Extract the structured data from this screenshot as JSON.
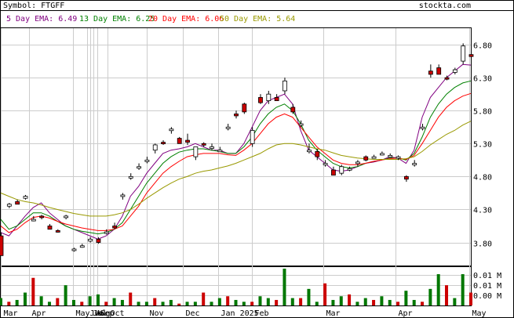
{
  "header": {
    "symbol_text": "Symbol: FTGFF",
    "brand": "stockta.com"
  },
  "legend": [
    {
      "label": "5 Day EMA: 6.49",
      "color": "#800080"
    },
    {
      "label": "13 Day EMA: 6.25",
      "color": "#008000"
    },
    {
      "label": "20 Day EMA: 6.06",
      "color": "#ff0000"
    },
    {
      "label": "50 Day EMA: 5.64",
      "color": "#999900"
    }
  ],
  "colors": {
    "up": "#ffffff",
    "down": "#cc0000",
    "vol_up": "#007700",
    "vol_down": "#cc0000",
    "grid": "#cccccc"
  },
  "chart_data": {
    "type": "candlestick",
    "title": "Symbol: FTGFF",
    "y_ticks": [
      6.8,
      6.3,
      5.8,
      5.3,
      4.8,
      4.3,
      3.8
    ],
    "y_tick_labels": [
      "6.80",
      "6.30",
      "5.80",
      "5.30",
      "4.80",
      "4.30",
      "3.80"
    ],
    "ylim": [
      3.45,
      7.05
    ],
    "x_labels": [
      "Mar",
      "Apr",
      "May",
      "Jun",
      "Jul",
      "Aug",
      "Sep",
      "Oct",
      "Nov",
      "Dec",
      "Jan 2025",
      "Feb",
      "Mar",
      "Apr",
      "May"
    ],
    "x_label_index": [
      0,
      16,
      41,
      49,
      51,
      53,
      55,
      61,
      83,
      104,
      124,
      143,
      184,
      225,
      267
    ],
    "volume_ticks": [
      "0.01 M",
      "0.01 M",
      "0.00 M"
    ],
    "series": [
      {
        "name": "5 Day EMA",
        "values": [
          3.95,
          3.9,
          4.05,
          4.2,
          4.33,
          4.4,
          4.25,
          4.15,
          4.05,
          4.0,
          3.95,
          3.9,
          3.85,
          3.9,
          4.0,
          4.2,
          4.5,
          4.65,
          4.85,
          5.0,
          5.15,
          5.2,
          5.22,
          5.25,
          5.3,
          5.25,
          5.2,
          5.2,
          5.15,
          5.15,
          5.3,
          5.55,
          5.8,
          5.95,
          6.0,
          6.05,
          5.9,
          5.5,
          5.2,
          5.1,
          5.0,
          4.9,
          4.88,
          4.9,
          4.95,
          5.0,
          5.02,
          5.05,
          5.1,
          5.08,
          5.0,
          5.2,
          5.7,
          6.0,
          6.15,
          6.3,
          6.4,
          6.5,
          6.49
        ]
      },
      {
        "name": "13 Day EMA",
        "values": [
          4.15,
          4.0,
          4.05,
          4.15,
          4.25,
          4.25,
          4.2,
          4.12,
          4.05,
          4.0,
          3.97,
          3.95,
          3.93,
          3.95,
          4.0,
          4.1,
          4.3,
          4.5,
          4.7,
          4.85,
          5.0,
          5.1,
          5.17,
          5.2,
          5.22,
          5.22,
          5.2,
          5.18,
          5.15,
          5.15,
          5.25,
          5.4,
          5.6,
          5.75,
          5.85,
          5.9,
          5.8,
          5.6,
          5.35,
          5.2,
          5.1,
          5.0,
          4.95,
          4.93,
          4.95,
          5.0,
          5.03,
          5.05,
          5.08,
          5.08,
          5.05,
          5.15,
          5.4,
          5.7,
          5.9,
          6.05,
          6.15,
          6.22,
          6.25
        ]
      },
      {
        "name": "20 Day EMA",
        "values": [
          4.05,
          3.95,
          4.0,
          4.1,
          4.18,
          4.2,
          4.17,
          4.12,
          4.08,
          4.05,
          4.02,
          4.0,
          3.98,
          3.98,
          4.0,
          4.05,
          4.2,
          4.35,
          4.55,
          4.7,
          4.85,
          4.95,
          5.03,
          5.1,
          5.13,
          5.15,
          5.15,
          5.15,
          5.13,
          5.12,
          5.2,
          5.3,
          5.45,
          5.6,
          5.7,
          5.75,
          5.7,
          5.55,
          5.4,
          5.25,
          5.15,
          5.05,
          5.0,
          4.98,
          4.98,
          5.0,
          5.03,
          5.05,
          5.07,
          5.08,
          5.06,
          5.12,
          5.3,
          5.5,
          5.7,
          5.85,
          5.95,
          6.02,
          6.06
        ]
      },
      {
        "name": "50 Day EMA",
        "values": [
          4.55,
          4.5,
          4.45,
          4.42,
          4.4,
          4.37,
          4.33,
          4.3,
          4.27,
          4.24,
          4.22,
          4.2,
          4.2,
          4.2,
          4.22,
          4.25,
          4.3,
          4.38,
          4.47,
          4.55,
          4.63,
          4.7,
          4.76,
          4.8,
          4.85,
          4.88,
          4.9,
          4.93,
          4.96,
          5.0,
          5.05,
          5.1,
          5.15,
          5.22,
          5.28,
          5.3,
          5.3,
          5.28,
          5.25,
          5.22,
          5.2,
          5.16,
          5.12,
          5.1,
          5.08,
          5.07,
          5.06,
          5.06,
          5.06,
          5.06,
          5.07,
          5.1,
          5.18,
          5.28,
          5.36,
          5.44,
          5.5,
          5.58,
          5.64
        ]
      }
    ],
    "candles": [
      {
        "o": 3.9,
        "h": 3.95,
        "l": 3.6,
        "c": 3.6
      },
      {
        "o": 4.35,
        "h": 4.4,
        "l": 4.32,
        "c": 4.38
      },
      {
        "o": 4.42,
        "h": 4.45,
        "l": 4.38,
        "c": 4.38
      },
      {
        "o": 4.47,
        "h": 4.52,
        "l": 4.45,
        "c": 4.5
      },
      {
        "o": 4.15,
        "h": 4.2,
        "l": 4.12,
        "c": 4.15
      },
      {
        "o": 4.2,
        "h": 4.22,
        "l": 4.15,
        "c": 4.18
      },
      {
        "o": 4.05,
        "h": 4.08,
        "l": 4.0,
        "c": 4.0
      },
      {
        "o": 3.98,
        "h": 4.0,
        "l": 3.95,
        "c": 3.96
      },
      {
        "o": 4.2,
        "h": 4.22,
        "l": 4.15,
        "c": 4.2
      },
      {
        "o": 3.7,
        "h": 3.72,
        "l": 3.66,
        "c": 3.7
      },
      {
        "o": 3.75,
        "h": 3.78,
        "l": 3.72,
        "c": 3.75
      },
      {
        "o": 3.82,
        "h": 3.88,
        "l": 3.8,
        "c": 3.85
      },
      {
        "o": 3.85,
        "h": 3.88,
        "l": 3.78,
        "c": 3.8
      },
      {
        "o": 3.95,
        "h": 4.0,
        "l": 3.92,
        "c": 3.96
      },
      {
        "o": 4.05,
        "h": 4.1,
        "l": 4.0,
        "c": 4.02
      },
      {
        "o": 4.5,
        "h": 4.55,
        "l": 4.45,
        "c": 4.52
      },
      {
        "o": 4.8,
        "h": 4.85,
        "l": 4.75,
        "c": 4.8
      },
      {
        "o": 4.95,
        "h": 5.0,
        "l": 4.9,
        "c": 4.95
      },
      {
        "o": 5.05,
        "h": 5.1,
        "l": 5.0,
        "c": 5.05
      },
      {
        "o": 5.2,
        "h": 5.3,
        "l": 5.15,
        "c": 5.28
      },
      {
        "o": 5.32,
        "h": 5.35,
        "l": 5.28,
        "c": 5.3
      },
      {
        "o": 5.5,
        "h": 5.55,
        "l": 5.45,
        "c": 5.52
      },
      {
        "o": 5.38,
        "h": 5.4,
        "l": 5.3,
        "c": 5.3
      },
      {
        "o": 5.35,
        "h": 5.45,
        "l": 5.28,
        "c": 5.32
      },
      {
        "o": 5.1,
        "h": 5.25,
        "l": 5.05,
        "c": 5.25
      },
      {
        "o": 5.3,
        "h": 5.32,
        "l": 5.25,
        "c": 5.28
      },
      {
        "o": 5.25,
        "h": 5.3,
        "l": 5.2,
        "c": 5.25
      },
      {
        "o": 5.2,
        "h": 5.25,
        "l": 5.18,
        "c": 5.2
      },
      {
        "o": 5.55,
        "h": 5.6,
        "l": 5.5,
        "c": 5.55
      },
      {
        "o": 5.75,
        "h": 5.8,
        "l": 5.68,
        "c": 5.72
      },
      {
        "o": 5.9,
        "h": 5.92,
        "l": 5.75,
        "c": 5.78
      },
      {
        "o": 5.3,
        "h": 5.55,
        "l": 5.25,
        "c": 5.5
      },
      {
        "o": 6.0,
        "h": 6.05,
        "l": 5.9,
        "c": 5.92
      },
      {
        "o": 5.95,
        "h": 6.1,
        "l": 5.9,
        "c": 6.05
      },
      {
        "o": 6.0,
        "h": 6.05,
        "l": 5.95,
        "c": 5.95
      },
      {
        "o": 6.1,
        "h": 6.3,
        "l": 6.05,
        "c": 6.25
      },
      {
        "o": 5.85,
        "h": 5.9,
        "l": 5.75,
        "c": 5.78
      },
      {
        "o": 5.6,
        "h": 5.65,
        "l": 5.55,
        "c": 5.6
      },
      {
        "o": 5.2,
        "h": 5.3,
        "l": 5.15,
        "c": 5.2
      },
      {
        "o": 5.18,
        "h": 5.22,
        "l": 5.05,
        "c": 5.1
      },
      {
        "o": 5.0,
        "h": 5.05,
        "l": 4.95,
        "c": 5.0
      },
      {
        "o": 4.9,
        "h": 4.95,
        "l": 4.82,
        "c": 4.82
      },
      {
        "o": 4.85,
        "h": 4.98,
        "l": 4.82,
        "c": 4.95
      },
      {
        "o": 4.92,
        "h": 4.95,
        "l": 4.88,
        "c": 4.92
      },
      {
        "o": 5.0,
        "h": 5.05,
        "l": 4.95,
        "c": 5.02
      },
      {
        "o": 5.1,
        "h": 5.12,
        "l": 5.03,
        "c": 5.05
      },
      {
        "o": 5.1,
        "h": 5.13,
        "l": 5.08,
        "c": 5.1
      },
      {
        "o": 5.15,
        "h": 5.18,
        "l": 5.12,
        "c": 5.15
      },
      {
        "o": 5.12,
        "h": 5.15,
        "l": 5.1,
        "c": 5.12
      },
      {
        "o": 5.1,
        "h": 5.12,
        "l": 5.05,
        "c": 5.1
      },
      {
        "o": 4.8,
        "h": 4.82,
        "l": 4.72,
        "c": 4.76
      },
      {
        "o": 5.0,
        "h": 5.05,
        "l": 4.95,
        "c": 5.0
      },
      {
        "o": 5.55,
        "h": 5.6,
        "l": 5.5,
        "c": 5.55
      },
      {
        "o": 6.4,
        "h": 6.5,
        "l": 6.3,
        "c": 6.35
      },
      {
        "o": 6.45,
        "h": 6.5,
        "l": 6.35,
        "c": 6.35
      },
      {
        "o": 6.3,
        "h": 6.33,
        "l": 6.26,
        "c": 6.28
      },
      {
        "o": 6.38,
        "h": 6.45,
        "l": 6.35,
        "c": 6.42
      },
      {
        "o": 6.55,
        "h": 6.82,
        "l": 6.5,
        "c": 6.78
      },
      {
        "o": 6.65,
        "h": 6.7,
        "l": 6.6,
        "c": 6.62
      }
    ],
    "volume": [
      0.2,
      0.1,
      0.15,
      0.35,
      0.75,
      0.25,
      0.1,
      0.2,
      0.55,
      0.15,
      0.1,
      0.25,
      0.3,
      0.1,
      0.2,
      0.15,
      0.35,
      0.1,
      0.1,
      0.2,
      0.1,
      0.15,
      0.05,
      0.1,
      0.1,
      0.35,
      0.1,
      0.2,
      0.25,
      0.15,
      0.1,
      0.1,
      0.25,
      0.2,
      0.15,
      1.0,
      0.2,
      0.2,
      0.45,
      0.1,
      0.6,
      0.15,
      0.25,
      0.3,
      0.1,
      0.2,
      0.15,
      0.25,
      0.15,
      0.1,
      0.4,
      0.15,
      0.1,
      0.45,
      0.85,
      0.55,
      0.2,
      0.85,
      0.35
    ]
  }
}
